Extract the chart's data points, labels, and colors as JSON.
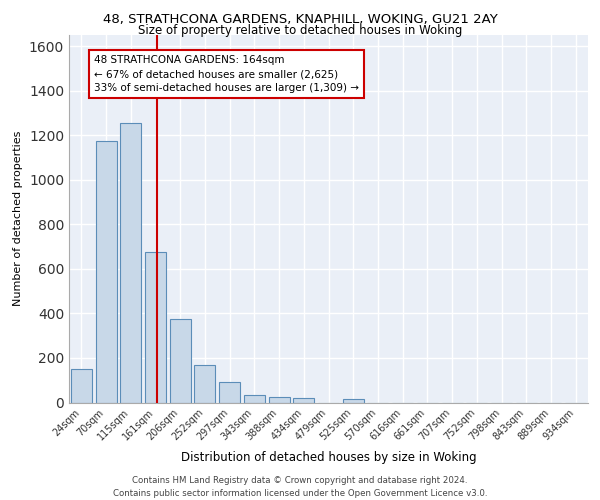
{
  "title1": "48, STRATHCONA GARDENS, KNAPHILL, WOKING, GU21 2AY",
  "title2": "Size of property relative to detached houses in Woking",
  "xlabel": "Distribution of detached houses by size in Woking",
  "ylabel": "Number of detached properties",
  "bar_labels": [
    "24sqm",
    "70sqm",
    "115sqm",
    "161sqm",
    "206sqm",
    "252sqm",
    "297sqm",
    "343sqm",
    "388sqm",
    "434sqm",
    "479sqm",
    "525sqm",
    "570sqm",
    "616sqm",
    "661sqm",
    "707sqm",
    "752sqm",
    "798sqm",
    "843sqm",
    "889sqm",
    "934sqm"
  ],
  "bar_values": [
    150,
    1175,
    1255,
    675,
    375,
    170,
    90,
    35,
    25,
    20,
    0,
    15,
    0,
    0,
    0,
    0,
    0,
    0,
    0,
    0,
    0
  ],
  "bar_color": "#c8d8e8",
  "bar_edge_color": "#5b8db8",
  "annotation_text": "48 STRATHCONA GARDENS: 164sqm\n← 67% of detached houses are smaller (2,625)\n33% of semi-detached houses are larger (1,309) →",
  "annotation_box_color": "#ffffff",
  "annotation_box_edge_color": "#cc0000",
  "vline_color": "#cc0000",
  "ylim": [
    0,
    1650
  ],
  "footer_text": "Contains HM Land Registry data © Crown copyright and database right 2024.\nContains public sector information licensed under the Open Government Licence v3.0.",
  "bg_color": "#eaeff7",
  "grid_color": "#ffffff",
  "title1_fontsize": 9.5,
  "title2_fontsize": 8.5,
  "xlabel_fontsize": 8.5,
  "ylabel_fontsize": 8.0,
  "tick_fontsize": 7.0,
  "annotation_fontsize": 7.5,
  "footer_fontsize": 6.2
}
